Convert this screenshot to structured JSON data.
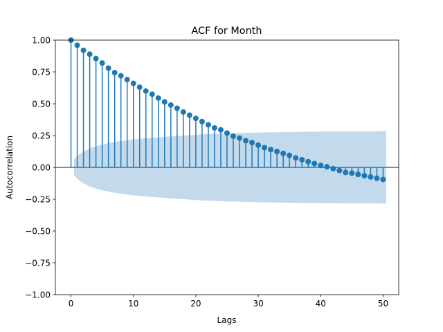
{
  "chart_data": {
    "type": "scatter",
    "subtype": "stem-autocorrelation",
    "title": "ACF for Month",
    "xlabel": "Lags",
    "ylabel": "Autocorrelation",
    "xlim": [
      -2.5,
      52.5
    ],
    "ylim": [
      -1.0,
      1.0
    ],
    "x_ticks": [
      0,
      10,
      20,
      30,
      40,
      50
    ],
    "x_tick_labels": [
      "0",
      "10",
      "20",
      "30",
      "40",
      "50"
    ],
    "y_ticks": [
      -1.0,
      -0.75,
      -0.5,
      -0.25,
      0.0,
      0.25,
      0.5,
      0.75,
      1.0
    ],
    "y_tick_labels": [
      "−1.00",
      "−0.75",
      "−0.50",
      "−0.25",
      "0.00",
      "0.25",
      "0.50",
      "0.75",
      "1.00"
    ],
    "grid": false,
    "colors": {
      "series": "#1f77b4",
      "confidence_band": "#c3d9ec"
    },
    "lags": [
      0,
      1,
      2,
      3,
      4,
      5,
      6,
      7,
      8,
      9,
      10,
      11,
      12,
      13,
      14,
      15,
      16,
      17,
      18,
      19,
      20,
      21,
      22,
      23,
      24,
      25,
      26,
      27,
      28,
      29,
      30,
      31,
      32,
      33,
      34,
      35,
      36,
      37,
      38,
      39,
      40,
      41,
      42,
      43,
      44,
      45,
      46,
      47,
      48,
      49,
      50
    ],
    "values": [
      1.0,
      0.96,
      0.92,
      0.89,
      0.855,
      0.82,
      0.78,
      0.745,
      0.72,
      0.69,
      0.66,
      0.63,
      0.6,
      0.575,
      0.545,
      0.515,
      0.49,
      0.465,
      0.435,
      0.41,
      0.385,
      0.36,
      0.335,
      0.31,
      0.295,
      0.27,
      0.245,
      0.23,
      0.21,
      0.195,
      0.175,
      0.155,
      0.14,
      0.125,
      0.11,
      0.095,
      0.075,
      0.06,
      0.045,
      0.03,
      0.015,
      0.005,
      -0.01,
      -0.025,
      -0.04,
      -0.045,
      -0.055,
      -0.065,
      -0.075,
      -0.085,
      -0.095
    ],
    "confidence_band": {
      "lags": [
        0.5,
        1,
        2,
        3,
        5,
        7,
        10,
        15,
        20,
        25,
        30,
        35,
        40,
        45,
        50.5
      ],
      "upper": [
        0.063,
        0.09,
        0.125,
        0.15,
        0.18,
        0.2,
        0.22,
        0.24,
        0.257,
        0.268,
        0.274,
        0.278,
        0.281,
        0.283,
        0.284
      ],
      "lower": [
        -0.063,
        -0.09,
        -0.125,
        -0.15,
        -0.18,
        -0.2,
        -0.22,
        -0.24,
        -0.257,
        -0.268,
        -0.274,
        -0.278,
        -0.281,
        -0.283,
        -0.284
      ]
    }
  }
}
